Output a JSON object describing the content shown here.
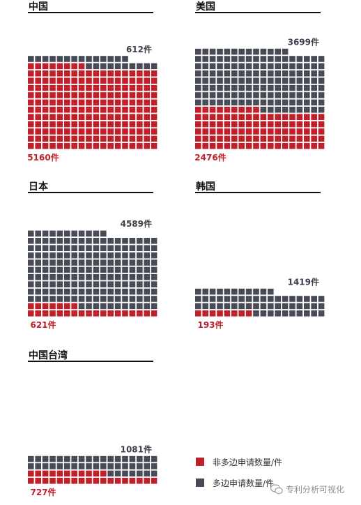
{
  "chart_data": {
    "type": "waffle",
    "unit_per_cell": 25,
    "panels": [
      {
        "title": "中国",
        "multilateral": 612,
        "non_multilateral": 5160,
        "multilateral_label": "612件",
        "non_multilateral_label": "5160件"
      },
      {
        "title": "美国",
        "multilateral": 3699,
        "non_multilateral": 2476,
        "multilateral_label": "3699件",
        "non_multilateral_label": "2476件"
      },
      {
        "title": "日本",
        "multilateral": 4589,
        "non_multilateral": 621,
        "multilateral_label": "4589件",
        "non_multilateral_label": "621件"
      },
      {
        "title": "韩国",
        "multilateral": 1419,
        "non_multilateral": 193,
        "multilateral_label": "1419件",
        "non_multilateral_label": "193件"
      },
      {
        "title": "中国台湾",
        "multilateral": 1081,
        "non_multilateral": 727,
        "multilateral_label": "1081件",
        "non_multilateral_label": "727件"
      }
    ],
    "legend": [
      {
        "label": "非多边申请数量/件",
        "color": "#c0202a"
      },
      {
        "label": "多边申请数量/件",
        "color": "#464b55"
      }
    ],
    "colors": {
      "non_multilateral": "#c0202a",
      "multilateral": "#464b55"
    }
  },
  "watermark": "专利分析可视化"
}
